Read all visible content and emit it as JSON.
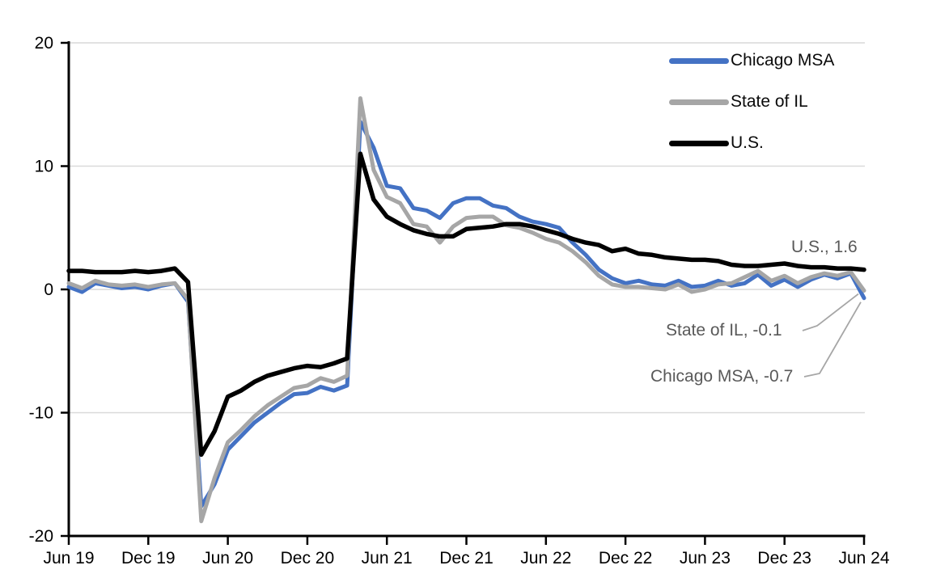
{
  "chart_data": {
    "type": "line",
    "title": "",
    "ylabel": "",
    "xlabel": "",
    "frequency": "monthly",
    "ylim": [
      -20,
      20
    ],
    "grid": "horizontal",
    "legend_position": "top-right",
    "gridline_color": "#D9D9D9",
    "axis_color": "#000000",
    "y_tick_labels": [
      "20",
      "10",
      "0",
      "-10",
      "-20"
    ],
    "y_ticks": [
      20,
      10,
      0,
      -10,
      -20
    ],
    "x_tick_labels": [
      "Jun 19",
      "Dec 19",
      "Jun 20",
      "Dec 20",
      "Jun 21",
      "Dec 21",
      "Jun 22",
      "Dec 22",
      "Jun 23",
      "Dec 23",
      "Jun 24"
    ],
    "x_months": [
      "2019-06",
      "2019-07",
      "2019-08",
      "2019-09",
      "2019-10",
      "2019-11",
      "2019-12",
      "2020-01",
      "2020-02",
      "2020-03",
      "2020-04",
      "2020-05",
      "2020-06",
      "2020-07",
      "2020-08",
      "2020-09",
      "2020-10",
      "2020-11",
      "2020-12",
      "2021-01",
      "2021-02",
      "2021-03",
      "2021-04",
      "2021-05",
      "2021-06",
      "2021-07",
      "2021-08",
      "2021-09",
      "2021-10",
      "2021-11",
      "2021-12",
      "2022-01",
      "2022-02",
      "2022-03",
      "2022-04",
      "2022-05",
      "2022-06",
      "2022-07",
      "2022-08",
      "2022-09",
      "2022-10",
      "2022-11",
      "2022-12",
      "2023-01",
      "2023-02",
      "2023-03",
      "2023-04",
      "2023-05",
      "2023-06",
      "2023-07",
      "2023-08",
      "2023-09",
      "2023-10",
      "2023-11",
      "2023-12",
      "2024-01",
      "2024-02",
      "2024-03",
      "2024-04",
      "2024-05",
      "2024-06"
    ],
    "series": [
      {
        "name": "Chicago MSA",
        "color": "#4472C4",
        "end_value": -0.7,
        "values": [
          0.2,
          -0.2,
          0.5,
          0.3,
          0.1,
          0.2,
          0.0,
          0.3,
          0.5,
          -1.0,
          -17.6,
          -15.8,
          -13.0,
          -11.9,
          -10.8,
          -10.0,
          -9.2,
          -8.5,
          -8.4,
          -7.9,
          -8.2,
          -7.8,
          13.6,
          11.5,
          8.4,
          8.2,
          6.6,
          6.4,
          5.8,
          7.0,
          7.4,
          7.4,
          6.8,
          6.6,
          5.9,
          5.5,
          5.3,
          5.0,
          3.8,
          2.8,
          1.6,
          0.9,
          0.5,
          0.7,
          0.4,
          0.3,
          0.7,
          0.2,
          0.3,
          0.7,
          0.3,
          0.5,
          1.2,
          0.3,
          0.8,
          0.2,
          0.8,
          1.2,
          0.9,
          1.3,
          -0.7
        ]
      },
      {
        "name": "State of IL",
        "color": "#A6A6A6",
        "end_value": -0.1,
        "values": [
          0.5,
          0.1,
          0.7,
          0.4,
          0.3,
          0.4,
          0.2,
          0.4,
          0.5,
          -0.8,
          -18.8,
          -15.3,
          -12.4,
          -11.4,
          -10.3,
          -9.4,
          -8.7,
          -8.0,
          -7.8,
          -7.2,
          -7.5,
          -7.0,
          15.5,
          9.7,
          7.5,
          7.0,
          5.3,
          5.1,
          3.8,
          5.1,
          5.8,
          5.9,
          5.9,
          5.2,
          5.0,
          4.6,
          4.1,
          3.8,
          3.1,
          2.2,
          1.1,
          0.4,
          0.2,
          0.2,
          0.1,
          0.0,
          0.4,
          -0.2,
          0.0,
          0.4,
          0.5,
          1.0,
          1.5,
          0.7,
          1.1,
          0.5,
          1.0,
          1.3,
          1.1,
          1.4,
          -0.1
        ]
      },
      {
        "name": "U.S.",
        "color": "#000000",
        "end_value": 1.6,
        "values": [
          1.5,
          1.5,
          1.4,
          1.4,
          1.4,
          1.5,
          1.4,
          1.5,
          1.7,
          0.6,
          -13.4,
          -11.5,
          -8.7,
          -8.2,
          -7.5,
          -7.0,
          -6.7,
          -6.4,
          -6.2,
          -6.3,
          -6.0,
          -5.6,
          11.0,
          7.3,
          5.9,
          5.3,
          4.8,
          4.5,
          4.3,
          4.3,
          4.9,
          5.0,
          5.1,
          5.3,
          5.3,
          5.1,
          4.8,
          4.5,
          4.1,
          3.8,
          3.6,
          3.1,
          3.3,
          2.9,
          2.8,
          2.6,
          2.5,
          2.4,
          2.4,
          2.3,
          2.0,
          1.9,
          1.9,
          2.0,
          2.1,
          1.9,
          1.8,
          1.8,
          1.7,
          1.7,
          1.6
        ]
      }
    ],
    "annotations": [
      {
        "text": "U.S., 1.6",
        "series": "U.S.",
        "color": "#595959"
      },
      {
        "text": "State of IL, -0.1",
        "series": "State of IL",
        "color": "#595959"
      },
      {
        "text": "Chicago MSA, -0.7",
        "series": "Chicago MSA",
        "color": "#595959"
      }
    ]
  },
  "legend": {
    "items": [
      {
        "label": "Chicago MSA",
        "color": "#4472C4"
      },
      {
        "label": "State of IL",
        "color": "#A6A6A6"
      },
      {
        "label": "U.S.",
        "color": "#000000"
      }
    ]
  }
}
